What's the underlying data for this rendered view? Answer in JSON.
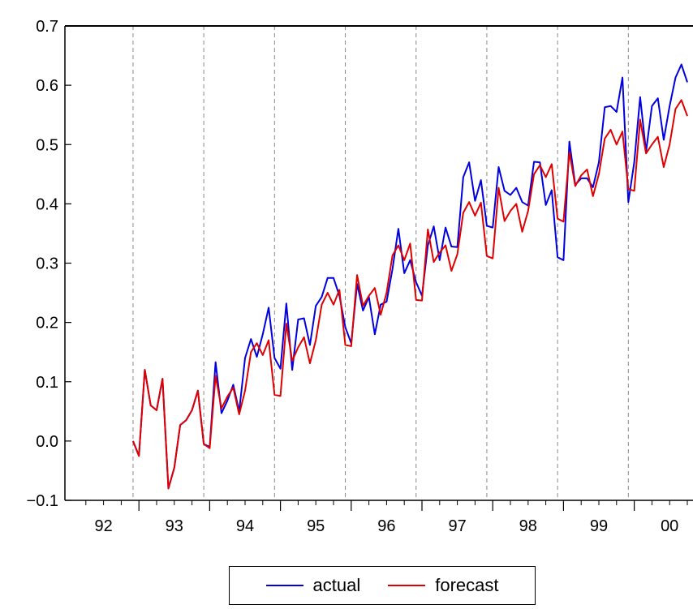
{
  "chart_data": {
    "type": "line",
    "title": "",
    "xlabel": "",
    "ylabel": "",
    "frequency": "monthly",
    "start": "1992-12",
    "xlim": [
      "1992-01",
      "2000-11"
    ],
    "ylim": [
      -0.1,
      0.7
    ],
    "y_ticks": [
      "−0.1",
      "0.0",
      "0.1",
      "0.2",
      "0.3",
      "0.4",
      "0.5",
      "0.6",
      "0.7"
    ],
    "y_tick_values": [
      -0.1,
      0.0,
      0.1,
      0.2,
      0.3,
      0.4,
      0.5,
      0.6,
      0.7
    ],
    "x_tick_labels": [
      "92",
      "93",
      "94",
      "95",
      "96",
      "97",
      "98",
      "99",
      "00"
    ],
    "vertical_reference_lines": [
      "1992-12",
      "1993-12",
      "1994-12",
      "1995-12",
      "1996-12",
      "1997-12",
      "1998-12",
      "1999-12"
    ],
    "legend": "bottom-center",
    "grid": false,
    "series": [
      {
        "name": "actual",
        "color": "#0000e0",
        "values": [
          0.0,
          -0.025,
          0.12,
          0.06,
          0.052,
          0.105,
          -0.08,
          -0.045,
          0.027,
          0.035,
          0.052,
          0.085,
          -0.005,
          -0.01,
          0.133,
          0.047,
          0.068,
          0.095,
          0.05,
          0.14,
          0.172,
          0.142,
          0.18,
          0.225,
          0.14,
          0.122,
          0.232,
          0.12,
          0.205,
          0.207,
          0.162,
          0.228,
          0.243,
          0.275,
          0.275,
          0.245,
          0.192,
          0.165,
          0.265,
          0.22,
          0.243,
          0.18,
          0.23,
          0.235,
          0.29,
          0.358,
          0.283,
          0.305,
          0.268,
          0.245,
          0.33,
          0.362,
          0.305,
          0.36,
          0.328,
          0.327,
          0.445,
          0.47,
          0.405,
          0.44,
          0.363,
          0.36,
          0.462,
          0.422,
          0.415,
          0.427,
          0.403,
          0.397,
          0.471,
          0.47,
          0.398,
          0.423,
          0.31,
          0.305,
          0.505,
          0.432,
          0.443,
          0.443,
          0.428,
          0.47,
          0.563,
          0.565,
          0.555,
          0.613,
          0.403,
          0.47,
          0.58,
          0.488,
          0.565,
          0.578,
          0.508,
          0.565,
          0.613,
          0.635,
          0.605
        ]
      },
      {
        "name": "forecast",
        "color": "#e00000",
        "values": [
          0.0,
          -0.025,
          0.12,
          0.06,
          0.052,
          0.105,
          -0.08,
          -0.045,
          0.027,
          0.035,
          0.052,
          0.085,
          -0.005,
          -0.012,
          0.11,
          0.055,
          0.075,
          0.09,
          0.045,
          0.085,
          0.15,
          0.165,
          0.145,
          0.17,
          0.078,
          0.076,
          0.198,
          0.135,
          0.158,
          0.175,
          0.131,
          0.17,
          0.23,
          0.25,
          0.23,
          0.255,
          0.162,
          0.16,
          0.28,
          0.228,
          0.245,
          0.258,
          0.213,
          0.25,
          0.313,
          0.33,
          0.305,
          0.333,
          0.238,
          0.237,
          0.357,
          0.302,
          0.318,
          0.33,
          0.287,
          0.315,
          0.385,
          0.403,
          0.38,
          0.402,
          0.312,
          0.308,
          0.427,
          0.371,
          0.388,
          0.4,
          0.353,
          0.388,
          0.45,
          0.465,
          0.445,
          0.467,
          0.375,
          0.37,
          0.487,
          0.43,
          0.448,
          0.458,
          0.413,
          0.45,
          0.51,
          0.525,
          0.5,
          0.522,
          0.425,
          0.422,
          0.542,
          0.485,
          0.5,
          0.513,
          0.462,
          0.5,
          0.56,
          0.575,
          0.548
        ]
      }
    ]
  }
}
